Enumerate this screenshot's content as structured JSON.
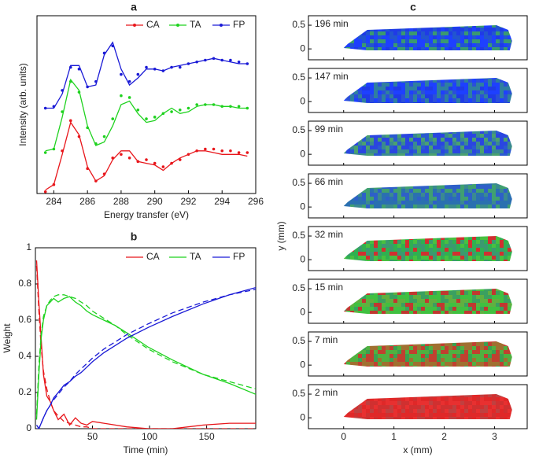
{
  "chart_data": [
    {
      "type": "line",
      "panel_label": "a",
      "xlabel": "Energy transfer (eV)",
      "ylabel": "Intensity (arb. units)",
      "xlim": [
        283,
        296
      ],
      "ylim": [
        0,
        10
      ],
      "xticks": [
        284,
        286,
        288,
        290,
        292,
        294,
        296
      ],
      "markers": true,
      "legend": "top-right",
      "x": [
        283.5,
        284,
        284.5,
        285,
        285.5,
        286,
        286.5,
        287,
        287.5,
        288,
        288.5,
        289,
        289.5,
        290,
        290.5,
        291,
        291.5,
        292,
        292.5,
        293,
        293.5,
        294,
        294.5,
        295,
        295.5
      ],
      "series": [
        {
          "name": "CA",
          "color": "#e8161b",
          "values": [
            0.1,
            0.5,
            2.4,
            4.1,
            3.2,
            1.4,
            0.7,
            1.1,
            2.0,
            2.2,
            2.0,
            1.8,
            1.9,
            1.7,
            1.5,
            1.7,
            1.9,
            2.2,
            2.4,
            2.5,
            2.5,
            2.4,
            2.4,
            2.3,
            2.3
          ],
          "fit": [
            0.2,
            0.5,
            2.2,
            4.0,
            3.3,
            1.5,
            0.7,
            1.0,
            1.9,
            2.4,
            2.4,
            1.8,
            1.7,
            1.6,
            1.3,
            1.7,
            2.0,
            2.2,
            2.4,
            2.4,
            2.3,
            2.2,
            2.2,
            2.2,
            2.1
          ]
        },
        {
          "name": "TA",
          "color": "#1fd21f",
          "values": [
            2.3,
            2.5,
            4.6,
            6.3,
            5.7,
            3.7,
            2.8,
            3.2,
            4.2,
            5.5,
            5.4,
            4.7,
            4.2,
            4.3,
            4.5,
            4.6,
            4.7,
            4.8,
            5.0,
            5.0,
            5.0,
            4.9,
            4.9,
            4.9,
            4.8
          ],
          "fit": [
            2.4,
            2.5,
            4.3,
            6.4,
            5.8,
            3.8,
            2.7,
            2.9,
            3.8,
            5.0,
            5.2,
            4.5,
            4.0,
            4.1,
            4.5,
            4.8,
            4.5,
            4.6,
            4.9,
            5.0,
            5.0,
            4.9,
            4.9,
            4.8,
            4.8
          ]
        },
        {
          "name": "FP",
          "color": "#1a1ad6",
          "values": [
            4.8,
            4.9,
            5.8,
            7.1,
            7.0,
            6.0,
            6.3,
            7.9,
            8.3,
            6.7,
            6.3,
            6.7,
            7.1,
            7.0,
            6.9,
            7.1,
            7.1,
            7.3,
            7.4,
            7.5,
            7.6,
            7.5,
            7.5,
            7.4,
            7.3
          ],
          "fit": [
            4.8,
            4.8,
            5.6,
            7.2,
            7.2,
            6.0,
            6.1,
            7.8,
            8.5,
            7.0,
            6.1,
            6.5,
            7.0,
            7.0,
            6.9,
            7.1,
            7.2,
            7.3,
            7.4,
            7.5,
            7.6,
            7.5,
            7.4,
            7.3,
            7.3
          ]
        }
      ]
    },
    {
      "type": "line",
      "panel_label": "b",
      "xlabel": "Time (min)",
      "ylabel": "Weight",
      "xlim": [
        0,
        193
      ],
      "ylim": [
        0,
        1
      ],
      "xticks": [
        50,
        100,
        150
      ],
      "yticks": [
        0,
        0.2,
        0.4,
        0.6,
        0.8,
        1
      ],
      "markers": false,
      "legend": "top-right",
      "x": [
        1,
        3,
        5,
        7,
        10,
        13,
        16,
        20,
        25,
        30,
        35,
        40,
        45,
        50,
        60,
        70,
        80,
        99,
        120,
        147,
        170,
        193
      ],
      "series": [
        {
          "name": "CA",
          "color": "#e8161b",
          "values": [
            0.93,
            0.7,
            0.5,
            0.3,
            0.18,
            0.15,
            0.1,
            0.05,
            0.08,
            0.02,
            0.06,
            0.03,
            0.02,
            0.04,
            0.03,
            0.02,
            0.01,
            0.0,
            0.0,
            0.02,
            0.03,
            0.03
          ],
          "fit": [
            0.9,
            0.65,
            0.45,
            0.32,
            0.22,
            0.15,
            0.1,
            0.07,
            0.04,
            0.03,
            0.02,
            0.01,
            0.01,
            0,
            0,
            0,
            0,
            0,
            0,
            0,
            0,
            0
          ]
        },
        {
          "name": "TA",
          "color": "#1fd21f",
          "values": [
            0.05,
            0.3,
            0.5,
            0.6,
            0.68,
            0.7,
            0.72,
            0.7,
            0.72,
            0.73,
            0.7,
            0.68,
            0.65,
            0.63,
            0.6,
            0.57,
            0.53,
            0.45,
            0.38,
            0.3,
            0.25,
            0.19
          ],
          "fit": [
            0.08,
            0.35,
            0.52,
            0.62,
            0.68,
            0.71,
            0.73,
            0.74,
            0.74,
            0.73,
            0.72,
            0.7,
            0.68,
            0.65,
            0.61,
            0.57,
            0.52,
            0.44,
            0.37,
            0.3,
            0.26,
            0.22
          ]
        },
        {
          "name": "FP",
          "color": "#1a1ad6",
          "values": [
            0.02,
            0.0,
            0.03,
            0.06,
            0.1,
            0.13,
            0.17,
            0.2,
            0.24,
            0.26,
            0.29,
            0.31,
            0.34,
            0.37,
            0.42,
            0.46,
            0.5,
            0.56,
            0.62,
            0.69,
            0.74,
            0.78
          ],
          "fit": [
            0.0,
            0.0,
            0.03,
            0.06,
            0.1,
            0.13,
            0.16,
            0.19,
            0.23,
            0.26,
            0.3,
            0.33,
            0.36,
            0.39,
            0.44,
            0.48,
            0.52,
            0.58,
            0.64,
            0.7,
            0.74,
            0.77
          ]
        }
      ]
    },
    {
      "type": "heatmap",
      "panel_label": "c",
      "xlabel": "x (mm)",
      "ylabel": "y (mm)",
      "xlim": [
        -0.7,
        3.65
      ],
      "ylim": [
        -0.23,
        0.7
      ],
      "xticks": [
        0,
        1,
        2,
        3
      ],
      "yticks": [
        0,
        0.5
      ],
      "maps": [
        {
          "label": "196 min",
          "colors": [
            "#1f3be6",
            "#2255d0",
            "#3a9a70",
            "#1e40ff"
          ]
        },
        {
          "label": "147 min",
          "colors": [
            "#1f3be6",
            "#2a50d8",
            "#2f7fa0",
            "#1e40ff"
          ]
        },
        {
          "label": "99 min",
          "colors": [
            "#2a5ad0",
            "#3a8a90",
            "#2a46e0",
            "#4aa070"
          ]
        },
        {
          "label": "66 min",
          "colors": [
            "#3a8a90",
            "#2a70b0",
            "#40a070",
            "#2e60c8"
          ]
        },
        {
          "label": "32 min",
          "colors": [
            "#30b050",
            "#48c040",
            "#3a9a70",
            "#d03030"
          ]
        },
        {
          "label": "15 min",
          "colors": [
            "#40c040",
            "#60b040",
            "#c03830",
            "#3aa060"
          ]
        },
        {
          "label": "7 min",
          "colors": [
            "#50b040",
            "#c04030",
            "#3aa050",
            "#a07030"
          ]
        },
        {
          "label": "2 min",
          "colors": [
            "#e02828",
            "#d03030",
            "#c04040",
            "#e83030"
          ]
        }
      ]
    }
  ]
}
